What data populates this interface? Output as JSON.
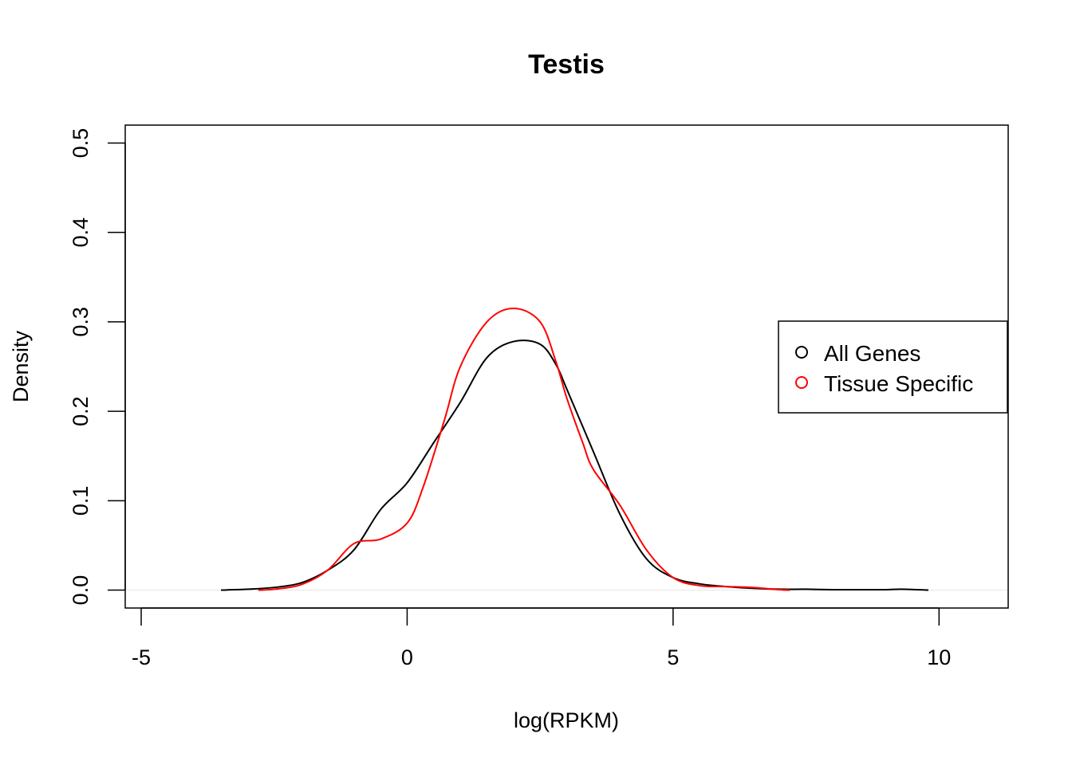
{
  "chart_data": {
    "type": "line",
    "title": "Testis",
    "xlabel": "log(RPKM)",
    "ylabel": "Density",
    "xlim": [
      -5.3,
      11.3
    ],
    "ylim": [
      -0.02,
      0.52
    ],
    "x_ticks": [
      -5,
      0,
      5,
      10
    ],
    "x_tick_labels": [
      "-5",
      "0",
      "5",
      "10"
    ],
    "y_ticks": [
      0.0,
      0.1,
      0.2,
      0.3,
      0.4,
      0.5
    ],
    "y_tick_labels": [
      "0.0",
      "0.1",
      "0.2",
      "0.3",
      "0.4",
      "0.5"
    ],
    "legend_position": "right",
    "series": [
      {
        "name": "All Genes",
        "color": "#000000",
        "x": [
          -3.5,
          -3.0,
          -2.5,
          -2.0,
          -1.5,
          -1.0,
          -0.5,
          0.0,
          0.5,
          1.0,
          1.5,
          2.0,
          2.5,
          2.8,
          3.0,
          3.5,
          4.0,
          4.5,
          5.0,
          5.5,
          6.0,
          6.5,
          7.0,
          7.5,
          8.0,
          8.5,
          9.0,
          9.3,
          9.8
        ],
        "y": [
          0.0,
          0.001,
          0.003,
          0.008,
          0.022,
          0.045,
          0.09,
          0.12,
          0.165,
          0.21,
          0.26,
          0.278,
          0.275,
          0.252,
          0.225,
          0.155,
          0.085,
          0.035,
          0.014,
          0.007,
          0.004,
          0.002,
          0.001,
          0.001,
          0.0005,
          0.0005,
          0.0005,
          0.001,
          0.0
        ]
      },
      {
        "name": "Tissue Specific",
        "color": "#ff0000",
        "x": [
          -2.8,
          -2.5,
          -2.0,
          -1.5,
          -1.0,
          -0.5,
          0.0,
          0.3,
          0.7,
          1.0,
          1.5,
          2.0,
          2.5,
          2.8,
          3.0,
          3.3,
          3.5,
          4.0,
          4.5,
          5.0,
          5.5,
          6.0,
          6.5,
          7.0,
          7.2
        ],
        "y": [
          0.0,
          0.001,
          0.006,
          0.022,
          0.052,
          0.057,
          0.075,
          0.115,
          0.19,
          0.25,
          0.3,
          0.315,
          0.3,
          0.255,
          0.215,
          0.165,
          0.135,
          0.095,
          0.045,
          0.014,
          0.005,
          0.004,
          0.003,
          0.0005,
          0.0
        ]
      }
    ]
  }
}
